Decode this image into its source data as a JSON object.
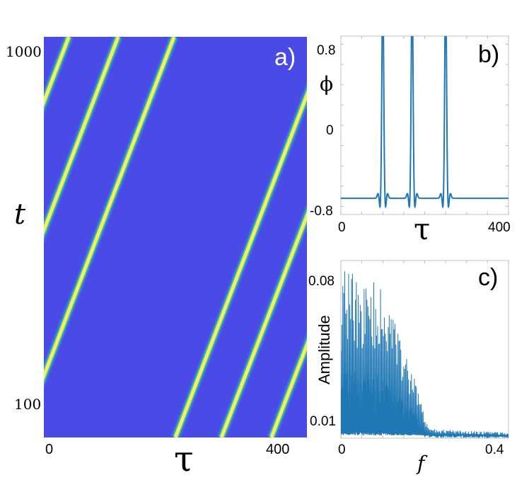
{
  "chart_data": [
    {
      "panel_label": "a)",
      "type": "heatmap",
      "xlabel": "τ",
      "ylabel": "t",
      "x_ticks": [
        "0",
        "400"
      ],
      "y_ticks": [
        "1000",
        "100"
      ],
      "xlim": [
        0,
        400
      ],
      "ylim": [
        100,
        1000
      ],
      "background_color": "#4a4ae6",
      "band_color": "#f0f060",
      "bands": [
        {
          "tau_start": 200,
          "tau_end": 434
        },
        {
          "tau_start": 270,
          "tau_end": 505
        },
        {
          "tau_start": 346,
          "tau_end": 580
        },
        {
          "tau_start": -36,
          "tau_end": 198
        },
        {
          "tau_start": -265,
          "tau_end": -31
        },
        {
          "tau_start": -196,
          "tau_end": 38
        },
        {
          "tau_start": -121,
          "tau_end": 113
        }
      ]
    },
    {
      "panel_label": "b)",
      "type": "line",
      "xlabel": "τ",
      "ylabel": "ϕ",
      "x_ticks": [
        "0",
        "400"
      ],
      "y_ticks": [
        "0.8",
        "0",
        "-0.8"
      ],
      "xlim": [
        0,
        400
      ],
      "ylim": [
        -0.88,
        0.88
      ],
      "line_color": "#1f77b4",
      "series": [
        {
          "baseline": -0.72,
          "pulse_centers": [
            100,
            170,
            250
          ],
          "pulse_peak": 0.88
        }
      ]
    },
    {
      "panel_label": "c)",
      "type": "line",
      "xlabel": "f",
      "ylabel": "Amplitude",
      "x_ticks": [
        "0",
        "0.4"
      ],
      "y_ticks": [
        "0.08",
        "0.01"
      ],
      "xlim": [
        0,
        0.4
      ],
      "ylim": [
        0,
        0.095
      ],
      "line_color": "#1f77b4",
      "series": [
        {
          "envelope_f": [
            0,
            0.01,
            0.03,
            0.05,
            0.08,
            0.1,
            0.13,
            0.15,
            0.17,
            0.19,
            0.21,
            0.4
          ],
          "envelope_amp": [
            0.085,
            0.093,
            0.09,
            0.084,
            0.085,
            0.078,
            0.062,
            0.05,
            0.04,
            0.02,
            0.005,
            0.003
          ]
        }
      ]
    }
  ]
}
